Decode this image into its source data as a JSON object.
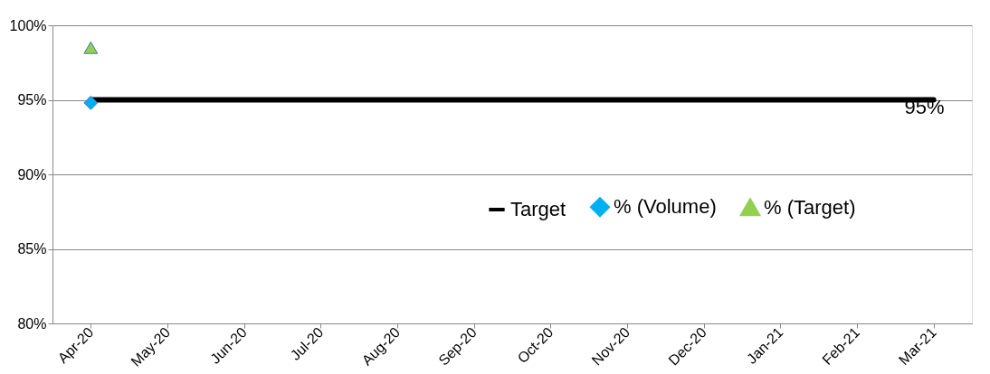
{
  "chart_data": {
    "type": "line",
    "categories": [
      "Apr-20",
      "May-20",
      "Jun-20",
      "Jul-20",
      "Aug-20",
      "Sep-20",
      "Oct-20",
      "Nov-20",
      "Dec-20",
      "Jan-21",
      "Feb-21",
      "Mar-21"
    ],
    "series": [
      {
        "name": "Target",
        "color": "#000000",
        "marker": "none",
        "values": [
          95,
          95,
          95,
          95,
          95,
          95,
          95,
          95,
          95,
          95,
          95,
          95
        ]
      },
      {
        "name": "% (Volume)",
        "color": "#00b0f0",
        "marker": "diamond",
        "values": [
          94.8,
          null,
          null,
          null,
          null,
          null,
          null,
          null,
          null,
          null,
          null,
          null
        ]
      },
      {
        "name": "% (Target)",
        "color": "#92d050",
        "marker": "triangle",
        "values": [
          98.5,
          null,
          null,
          null,
          null,
          null,
          null,
          null,
          null,
          null,
          null,
          null
        ]
      }
    ],
    "ylim": [
      80,
      100
    ],
    "yticks": [
      {
        "value": 80,
        "label": "80%"
      },
      {
        "value": 85,
        "label": "85%"
      },
      {
        "value": 90,
        "label": "90%"
      },
      {
        "value": 95,
        "label": "95%"
      },
      {
        "value": 100,
        "label": "100%"
      }
    ],
    "grid": "y",
    "legend": "right",
    "line_style": "solid",
    "annotations": [
      {
        "text": "95%",
        "x": "Mar-21",
        "y": 95
      }
    ]
  }
}
